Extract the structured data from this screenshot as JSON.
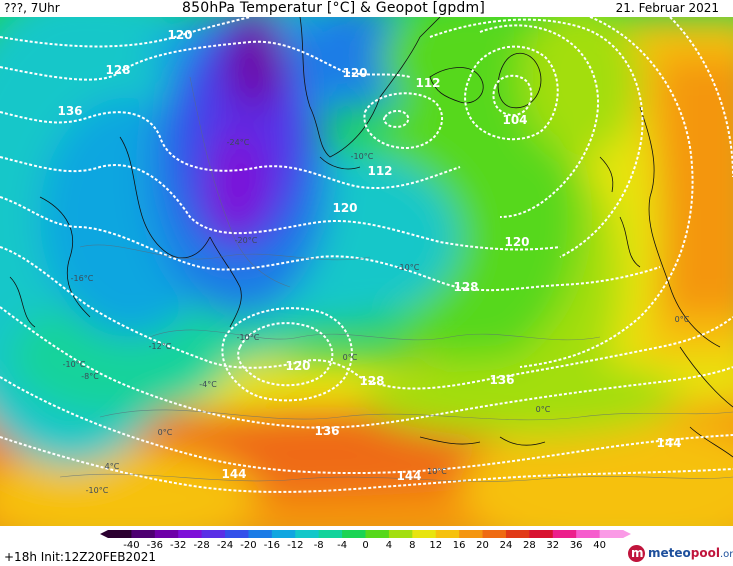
{
  "header": {
    "left_label": "???, 7Uhr",
    "title": "850hPa Temperatur [°C] & Geopot [gpdm]",
    "date": "21. Februar 2021"
  },
  "map": {
    "geopotential_labels": [
      "120",
      "128",
      "136",
      "120",
      "112",
      "112",
      "104",
      "120",
      "120",
      "128",
      "136",
      "120",
      "128",
      "136",
      "144",
      "144",
      "144"
    ],
    "isotherm_labels": [
      "-24°C",
      "-20°C",
      "-16°C",
      "-12°C",
      "-10°C",
      "-10°C",
      "-10°C",
      "-8°C",
      "-4°C",
      "0°C",
      "0°C",
      "0°C",
      "4°C",
      "-10°C",
      "0°C",
      "-10°C",
      "10°C"
    ]
  },
  "colorbar": {
    "ticks": [
      "-40",
      "-36",
      "-32",
      "-28",
      "-24",
      "-20",
      "-16",
      "-12",
      "-8",
      "-4",
      "0",
      "4",
      "8",
      "12",
      "16",
      "20",
      "24",
      "28",
      "32",
      "36",
      "40"
    ],
    "colors": [
      "#2b0030",
      "#4d0071",
      "#6d00a8",
      "#7d10d8",
      "#5a2fe6",
      "#3350ea",
      "#1b7be6",
      "#10a6e0",
      "#13c7c9",
      "#12d39b",
      "#1bd454",
      "#57d81c",
      "#a3de10",
      "#e8e40e",
      "#f6c10d",
      "#f49610",
      "#ef6b12",
      "#e13a17",
      "#d81230",
      "#ec1f8b",
      "#f65ccd",
      "#fa9ae6"
    ]
  },
  "footer": {
    "init": "+18h  Init:12Z20FEB2021",
    "logo_brand": "meteo",
    "logo_accent": "pool",
    "logo_tld": ".org"
  }
}
